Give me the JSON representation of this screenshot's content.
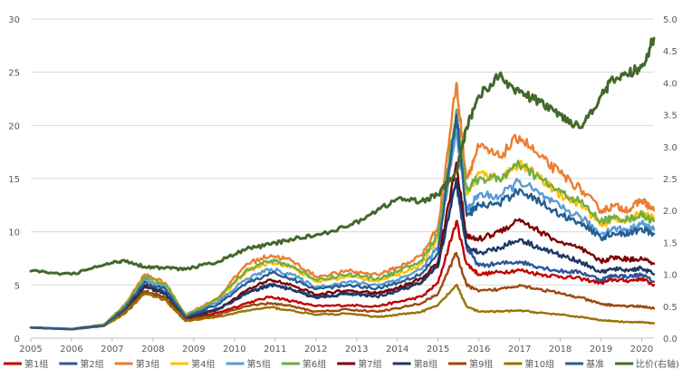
{
  "chart_data": {
    "type": "line",
    "title": "",
    "xlabel": "",
    "ylabel": "",
    "ylim": [
      0,
      30
    ],
    "y2lim": [
      0,
      5
    ],
    "grid": true,
    "legend_position": "bottom",
    "y_ticks": [
      "0",
      "5",
      "10",
      "15",
      "20",
      "25",
      "30"
    ],
    "y2_ticks": [
      "0.0",
      "0.5",
      "1.0",
      "1.5",
      "2.0",
      "2.5",
      "3.0",
      "3.5",
      "4.0",
      "4.5",
      "5.0"
    ],
    "x_ticks": [
      "2005",
      "2006",
      "2007",
      "2008",
      "2009",
      "2010",
      "2011",
      "2012",
      "2013",
      "2014",
      "2015",
      "2016",
      "2017",
      "2018",
      "2019",
      "2020"
    ],
    "x_tick_values": [
      2005,
      2006,
      2007,
      2008,
      2009,
      2010,
      2011,
      2012,
      2013,
      2014,
      2015,
      2016,
      2017,
      2018,
      2019,
      2020
    ],
    "x": [
      2005.0,
      2006.0,
      2006.8,
      2007.3,
      2007.8,
      2008.3,
      2008.8,
      2009.6,
      2010.3,
      2010.9,
      2011.4,
      2012.0,
      2012.8,
      2013.5,
      2014.0,
      2014.6,
      2015.0,
      2015.45,
      2015.7,
      2016.0,
      2016.5,
      2017.0,
      2017.5,
      2018.0,
      2018.5,
      2019.0,
      2019.3,
      2019.7,
      2020.0,
      2020.3
    ],
    "series": [
      {
        "name": "第1组",
        "color": "#c00000",
        "axis": "left",
        "values": [
          1,
          0.85,
          1.2,
          2.3,
          4.4,
          3.8,
          1.8,
          2.4,
          3.3,
          3.9,
          3.5,
          3.0,
          3.1,
          3.0,
          3.4,
          3.9,
          5.2,
          11.0,
          7.0,
          6.0,
          6.2,
          6.4,
          6.0,
          5.8,
          5.6,
          5.2,
          5.5,
          5.4,
          5.6,
          5.0
        ]
      },
      {
        "name": "第2组",
        "color": "#2e5597",
        "axis": "left",
        "values": [
          1,
          0.85,
          1.2,
          2.6,
          5.0,
          4.3,
          2.0,
          2.8,
          4.2,
          5.1,
          4.6,
          3.9,
          4.1,
          4.2,
          4.6,
          5.3,
          7.0,
          14.5,
          8.5,
          6.8,
          7.0,
          7.2,
          6.7,
          6.3,
          6.2,
          5.5,
          5.9,
          5.8,
          6.0,
          5.3
        ]
      },
      {
        "name": "第3组",
        "color": "#ed7d31",
        "axis": "left",
        "values": [
          1,
          0.85,
          1.3,
          3.1,
          6.0,
          5.2,
          2.2,
          3.8,
          7.0,
          7.8,
          7.3,
          5.8,
          6.3,
          6.0,
          6.6,
          7.8,
          10.5,
          24.0,
          15.0,
          18.0,
          17.0,
          19.0,
          17.0,
          15.5,
          14.0,
          12.0,
          12.4,
          12.1,
          13.0,
          12.0
        ]
      },
      {
        "name": "第4组",
        "color": "#ffc000",
        "axis": "left",
        "values": [
          1,
          0.85,
          1.3,
          2.9,
          5.7,
          5.0,
          2.1,
          3.6,
          6.3,
          7.2,
          6.7,
          5.3,
          5.8,
          5.4,
          6.0,
          7.0,
          9.4,
          20.5,
          13.5,
          15.5,
          15.0,
          16.5,
          15.0,
          13.5,
          12.6,
          10.6,
          11.2,
          11.1,
          11.8,
          11.2
        ]
      },
      {
        "name": "第5组",
        "color": "#5b9bd5",
        "axis": "left",
        "values": [
          1,
          0.85,
          1.25,
          2.8,
          5.5,
          4.8,
          2.0,
          3.4,
          5.6,
          6.5,
          6.0,
          4.8,
          5.3,
          5.0,
          5.5,
          6.5,
          8.6,
          19.5,
          12.0,
          13.5,
          13.3,
          14.8,
          13.5,
          12.3,
          11.4,
          9.8,
          10.3,
          10.2,
          10.8,
          10.2
        ]
      },
      {
        "name": "第6组",
        "color": "#70ad47",
        "axis": "left",
        "values": [
          1,
          0.85,
          1.25,
          3.0,
          5.8,
          5.1,
          2.1,
          3.7,
          6.5,
          7.3,
          6.8,
          5.5,
          6.0,
          5.6,
          6.2,
          7.3,
          9.8,
          21.5,
          14.0,
          15.0,
          15.0,
          16.3,
          15.0,
          13.7,
          12.8,
          11.0,
          11.3,
          11.2,
          11.6,
          11.0
        ]
      },
      {
        "name": "第7组",
        "color": "#7b0000",
        "axis": "left",
        "values": [
          1,
          0.85,
          1.2,
          2.5,
          4.9,
          4.2,
          1.9,
          2.7,
          4.5,
          5.5,
          5.0,
          4.1,
          4.5,
          4.2,
          4.7,
          5.6,
          7.2,
          16.5,
          9.5,
          9.3,
          10.0,
          11.2,
          10.0,
          9.0,
          8.4,
          7.2,
          7.6,
          7.4,
          7.5,
          7.0
        ]
      },
      {
        "name": "第8组",
        "color": "#1f3864",
        "axis": "left",
        "values": [
          1,
          0.85,
          1.2,
          2.5,
          4.8,
          4.2,
          1.9,
          2.7,
          4.2,
          5.0,
          4.6,
          3.8,
          4.2,
          3.9,
          4.4,
          5.2,
          6.7,
          15.0,
          8.8,
          8.0,
          8.5,
          9.3,
          8.5,
          7.8,
          7.2,
          6.2,
          6.5,
          6.4,
          6.6,
          6.0
        ]
      },
      {
        "name": "第9组",
        "color": "#9e480e",
        "axis": "left",
        "values": [
          1,
          0.85,
          1.15,
          2.4,
          4.4,
          3.8,
          1.7,
          2.2,
          3.0,
          3.3,
          3.0,
          2.5,
          2.7,
          2.5,
          2.8,
          3.3,
          4.2,
          8.0,
          5.0,
          4.4,
          4.6,
          5.0,
          4.6,
          4.2,
          3.8,
          3.2,
          3.1,
          3.0,
          3.0,
          2.8
        ]
      },
      {
        "name": "第10组",
        "color": "#997300",
        "axis": "left",
        "values": [
          1,
          0.85,
          1.15,
          2.3,
          4.2,
          3.6,
          1.6,
          2.0,
          2.6,
          2.9,
          2.6,
          2.2,
          2.3,
          2.0,
          2.2,
          2.5,
          3.1,
          5.0,
          3.0,
          2.5,
          2.5,
          2.6,
          2.4,
          2.2,
          2.0,
          1.7,
          1.6,
          1.5,
          1.5,
          1.4
        ]
      },
      {
        "name": "基准",
        "color": "#255e91",
        "axis": "left",
        "values": [
          1,
          0.85,
          1.2,
          2.8,
          5.3,
          4.6,
          2.0,
          3.2,
          5.2,
          6.1,
          5.6,
          4.6,
          5.0,
          4.7,
          5.2,
          6.1,
          8.0,
          21.0,
          11.5,
          12.5,
          12.6,
          14.0,
          12.8,
          11.6,
          10.9,
          9.4,
          9.9,
          9.8,
          10.3,
          9.8
        ]
      },
      {
        "name": "比价(右轴)",
        "color": "#43682b",
        "axis": "right",
        "values": [
          1.05,
          1.0,
          1.15,
          1.22,
          1.12,
          1.1,
          1.08,
          1.2,
          1.4,
          1.47,
          1.55,
          1.62,
          1.75,
          2.0,
          2.18,
          2.15,
          2.25,
          2.6,
          3.3,
          3.8,
          4.1,
          3.85,
          3.7,
          3.5,
          3.3,
          3.8,
          4.05,
          4.15,
          4.25,
          4.7
        ]
      }
    ]
  }
}
